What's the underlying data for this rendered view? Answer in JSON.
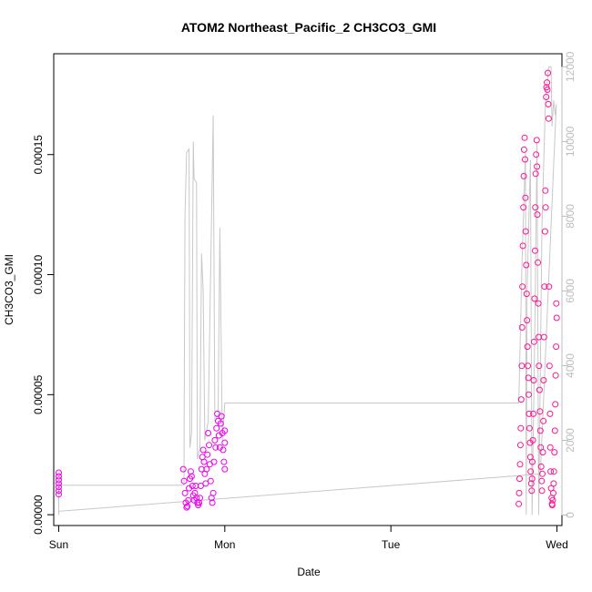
{
  "chart_data": {
    "type": "scatter",
    "title": "ATOM2 Northeast_Pacific_2 CH3CO3_GMI",
    "xlabel": "Date",
    "ylabel": "CH3CO3_GMI",
    "xlim": [
      -0.03,
      3.03
    ],
    "ylim": [
      -4.5e-06,
      0.000192
    ],
    "y2lim": [
      -280,
      12350
    ],
    "x_ticks": [
      {
        "value": 0,
        "label": "Sun"
      },
      {
        "value": 1,
        "label": "Mon"
      },
      {
        "value": 2,
        "label": "Tue"
      },
      {
        "value": 3,
        "label": "Wed"
      }
    ],
    "y_ticks": [
      {
        "value": 0,
        "label": "0.00000"
      },
      {
        "value": 5e-05,
        "label": "0.00005"
      },
      {
        "value": 0.0001,
        "label": "0.00010"
      },
      {
        "value": 0.00015,
        "label": "0.00015"
      }
    ],
    "y2_ticks": [
      {
        "value": 0,
        "label": "0"
      },
      {
        "value": 2000,
        "label": "2000"
      },
      {
        "value": 4000,
        "label": "4000"
      },
      {
        "value": 6000,
        "label": "6000"
      },
      {
        "value": 8000,
        "label": "8000"
      },
      {
        "value": 10000,
        "label": "10000"
      },
      {
        "value": 12000,
        "label": "12000"
      }
    ],
    "colors": {
      "low": "#ee00ee",
      "high": "#ff1493",
      "altitude_line": "#c8c8c8",
      "right_axis": "#bdbdbd"
    },
    "series": [
      {
        "type": "scatter",
        "axis": "left",
        "points": [
          [
            0.0,
            1.75e-05
          ],
          [
            0.0,
            1.6e-05
          ],
          [
            0.0,
            1.45e-05
          ],
          [
            0.0,
            1.3e-05
          ],
          [
            0.0,
            1.15e-05
          ],
          [
            0.0,
            1e-05
          ],
          [
            0.0,
            8.5e-06
          ],
          [
            0.75,
            1.9e-05
          ],
          [
            0.755,
            1.4e-05
          ],
          [
            0.76,
            9e-06
          ],
          [
            0.765,
            5e-06
          ],
          [
            0.77,
            3e-06
          ],
          [
            0.775,
            3.5e-06
          ],
          [
            0.78,
            6e-06
          ],
          [
            0.785,
            1.1e-05
          ],
          [
            0.79,
            1.5e-05
          ],
          [
            0.795,
            1.8e-05
          ],
          [
            0.8,
            1.6e-05
          ],
          [
            0.805,
            1.2e-05
          ],
          [
            0.81,
            8e-06
          ],
          [
            0.815,
            6e-06
          ],
          [
            0.82,
            9e-06
          ],
          [
            0.825,
            1.2e-05
          ],
          [
            0.83,
            7e-06
          ],
          [
            0.835,
            5e-06
          ],
          [
            0.84,
            4e-06
          ],
          [
            0.845,
            5e-06
          ],
          [
            0.85,
            7e-06
          ],
          [
            0.855,
            1.2e-05
          ],
          [
            0.86,
            1.9e-05
          ],
          [
            0.865,
            2.4e-05
          ],
          [
            0.87,
            2.7e-05
          ],
          [
            0.875,
            2.2e-05
          ],
          [
            0.88,
            1.7e-05
          ],
          [
            0.885,
            1.3e-05
          ],
          [
            0.89,
            1.9e-05
          ],
          [
            0.895,
            2.5e-05
          ],
          [
            0.9,
            3.4e-05
          ],
          [
            0.905,
            2.9e-05
          ],
          [
            0.91,
            2.1e-05
          ],
          [
            0.915,
            1.4e-05
          ],
          [
            0.92,
            7e-06
          ],
          [
            0.925,
            5e-06
          ],
          [
            0.93,
            9e-06
          ],
          [
            0.935,
            2.2e-05
          ],
          [
            0.94,
            3.1e-05
          ],
          [
            0.945,
            2.8e-05
          ],
          [
            0.95,
            3.6e-05
          ],
          [
            0.955,
            4.2e-05
          ],
          [
            0.96,
            3.9e-05
          ],
          [
            0.965,
            3.3e-05
          ],
          [
            0.97,
            2.8e-05
          ],
          [
            0.975,
            3.8e-05
          ],
          [
            0.98,
            4.1e-05
          ],
          [
            0.985,
            3.4e-05
          ],
          [
            0.99,
            2.7e-05
          ],
          [
            0.995,
            2.2e-05
          ],
          [
            1.0,
            1.9e-05
          ],
          [
            1.0,
            3.5e-05
          ],
          [
            1.0,
            3e-05
          ],
          [
            2.77,
            4.5e-06
          ],
          [
            2.772,
            9e-06
          ],
          [
            2.775,
            1.5e-05
          ],
          [
            2.778,
            2.1e-05
          ],
          [
            2.78,
            2.9e-05
          ],
          [
            2.782,
            3.6e-05
          ],
          [
            2.785,
            4.8e-05
          ],
          [
            2.788,
            6.2e-05
          ],
          [
            2.79,
            7.8e-05
          ],
          [
            2.792,
            9.5e-05
          ],
          [
            2.795,
            0.000112
          ],
          [
            2.798,
            0.000128
          ],
          [
            2.8,
            0.000141
          ],
          [
            2.802,
            0.000152
          ],
          [
            2.805,
            0.000157
          ],
          [
            2.808,
            0.000148
          ],
          [
            2.81,
            0.000132
          ],
          [
            2.812,
            0.000118
          ],
          [
            2.815,
            0.000104
          ],
          [
            2.818,
            9.2e-05
          ],
          [
            2.82,
            8.1e-05
          ],
          [
            2.822,
            7e-05
          ],
          [
            2.825,
            6.2e-05
          ],
          [
            2.828,
            5.7e-05
          ],
          [
            2.83,
            5e-05
          ],
          [
            2.832,
            4.2e-05
          ],
          [
            2.835,
            3.6e-05
          ],
          [
            2.838,
            3e-05
          ],
          [
            2.84,
            2.4e-05
          ],
          [
            2.842,
            1.8e-05
          ],
          [
            2.845,
            1.3e-05
          ],
          [
            2.848,
            1e-05
          ],
          [
            2.85,
            1.5e-05
          ],
          [
            2.852,
            2.2e-05
          ],
          [
            2.855,
            3.1e-05
          ],
          [
            2.858,
            4.2e-05
          ],
          [
            2.86,
            5.6e-05
          ],
          [
            2.862,
            7.2e-05
          ],
          [
            2.865,
            9e-05
          ],
          [
            2.868,
            0.00011
          ],
          [
            2.87,
            0.000128
          ],
          [
            2.872,
            0.000142
          ],
          [
            2.875,
            0.00015
          ],
          [
            2.878,
            0.000156
          ],
          [
            2.88,
            0.000145
          ],
          [
            2.882,
            0.000125
          ],
          [
            2.885,
            0.000105
          ],
          [
            2.888,
            8.8e-05
          ],
          [
            2.89,
            7.4e-05
          ],
          [
            2.892,
            6.2e-05
          ],
          [
            2.895,
            5.2e-05
          ],
          [
            2.898,
            4.3e-05
          ],
          [
            2.9,
            3.5e-05
          ],
          [
            2.902,
            2.8e-05
          ],
          [
            2.905,
            2e-05
          ],
          [
            2.908,
            1.4e-05
          ],
          [
            2.91,
            1e-05
          ],
          [
            2.912,
            1.7e-05
          ],
          [
            2.915,
            2.6e-05
          ],
          [
            2.918,
            3.9e-05
          ],
          [
            2.92,
            5.6e-05
          ],
          [
            2.922,
            7.4e-05
          ],
          [
            2.925,
            9.5e-05
          ],
          [
            2.928,
            0.000118
          ],
          [
            2.93,
            0.000135
          ],
          [
            2.932,
            0.000128
          ],
          [
            2.935,
            0.000174
          ],
          [
            2.937,
            0.000178
          ],
          [
            2.94,
            0.00018
          ],
          [
            2.942,
            0.000177
          ],
          [
            2.945,
            0.000184
          ],
          [
            2.948,
            0.000171
          ],
          [
            2.95,
            0.000165
          ],
          [
            2.952,
            9.5e-05
          ],
          [
            2.955,
            6.2e-05
          ],
          [
            2.958,
            4.2e-05
          ],
          [
            2.96,
            2.8e-05
          ],
          [
            2.962,
            1.8e-05
          ],
          [
            2.965,
            1.1e-05
          ],
          [
            2.968,
            7e-06
          ],
          [
            2.97,
            4.5e-06
          ],
          [
            2.972,
            4e-06
          ],
          [
            2.975,
            6e-06
          ],
          [
            2.978,
            9e-06
          ],
          [
            2.98,
            1.3e-05
          ],
          [
            2.982,
            1.8e-05
          ],
          [
            2.985,
            2.6e-05
          ],
          [
            2.988,
            3.5e-05
          ],
          [
            2.99,
            4.6e-05
          ],
          [
            2.992,
            5.8e-05
          ],
          [
            2.995,
            7e-05
          ],
          [
            2.998,
            8.2e-05
          ],
          [
            2.996,
            8.8e-05
          ]
        ]
      },
      {
        "type": "line",
        "axis": "right",
        "name": "",
        "points": [
          [
            0.0,
            0.0
          ],
          [
            0.0,
            800
          ],
          [
            0.5,
            800
          ],
          [
            0.755,
            800
          ],
          [
            0.755,
            2000
          ],
          [
            0.76,
            8000
          ],
          [
            0.77,
            9700
          ],
          [
            0.785,
            9800
          ],
          [
            0.79,
            1800
          ],
          [
            0.8,
            2200
          ],
          [
            0.81,
            10000
          ],
          [
            0.815,
            9000
          ],
          [
            0.83,
            8900
          ],
          [
            0.835,
            1500
          ],
          [
            0.85,
            1800
          ],
          [
            0.86,
            7000
          ],
          [
            0.87,
            6000
          ],
          [
            0.88,
            2000
          ],
          [
            0.9,
            2500
          ],
          [
            0.93,
            10700
          ],
          [
            0.94,
            2500
          ],
          [
            0.96,
            2700
          ],
          [
            0.97,
            7700
          ],
          [
            0.985,
            2000
          ],
          [
            1.0,
            3000
          ],
          [
            2.77,
            3000
          ],
          [
            2.79,
            6800
          ],
          [
            2.81,
            9700
          ],
          [
            2.815,
            0
          ],
          [
            2.82,
            6000
          ],
          [
            2.84,
            9500
          ],
          [
            2.85,
            0
          ],
          [
            2.87,
            6000
          ],
          [
            2.88,
            10000
          ],
          [
            2.89,
            0
          ],
          [
            2.91,
            7800
          ],
          [
            2.93,
            11000
          ],
          [
            2.95,
            12000
          ],
          [
            2.965,
            12000
          ],
          [
            2.97,
            10400
          ],
          [
            2.98,
            11100
          ],
          [
            2.99,
            10700
          ],
          [
            2.996,
            11000
          ],
          [
            2.9,
            1100
          ],
          [
            0.0,
            100
          ]
        ]
      }
    ]
  }
}
